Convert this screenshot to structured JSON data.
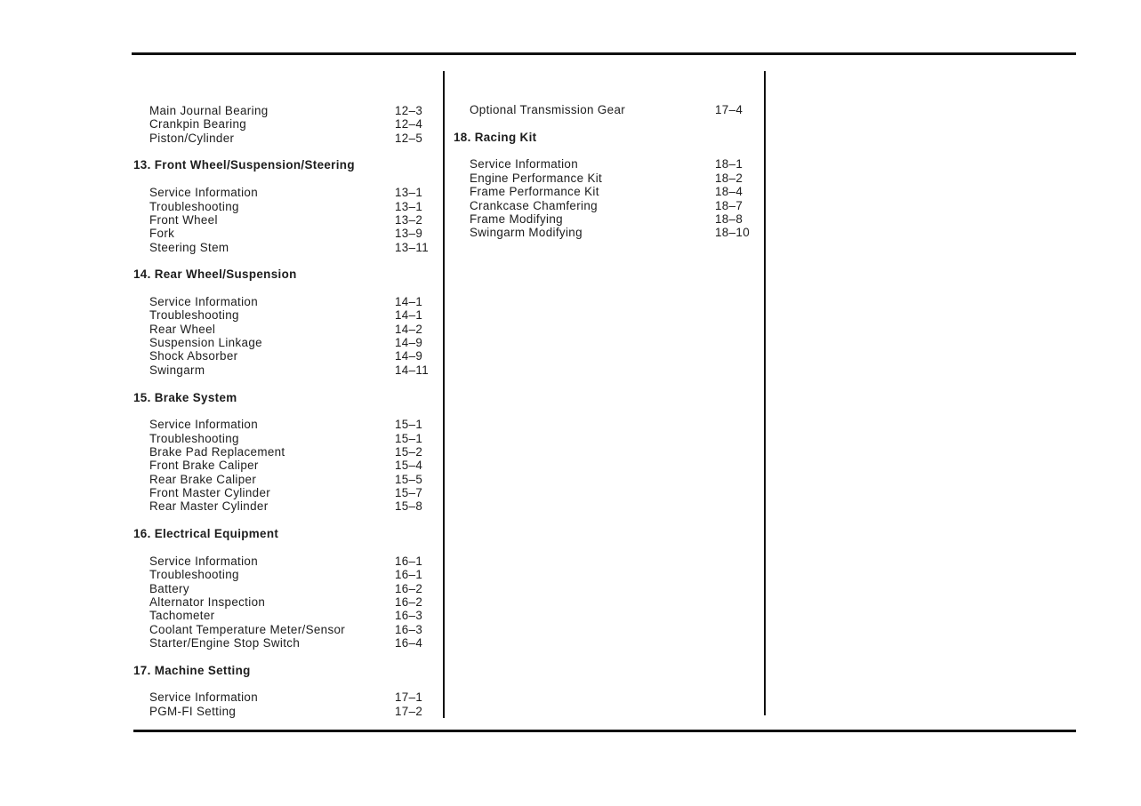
{
  "left_column": {
    "leading_items": [
      {
        "title": "Main Journal Bearing",
        "page": "12–3"
      },
      {
        "title": "Crankpin Bearing",
        "page": "12–4"
      },
      {
        "title": "Piston/Cylinder",
        "page": "12–5"
      }
    ],
    "sections": [
      {
        "heading": "13. Front Wheel/Suspension/Steering",
        "items": [
          {
            "title": "Service Information",
            "page": "13–1"
          },
          {
            "title": "Troubleshooting",
            "page": "13–1"
          },
          {
            "title": "Front Wheel",
            "page": "13–2"
          },
          {
            "title": "Fork",
            "page": "13–9"
          },
          {
            "title": "Steering Stem",
            "page": "13–11"
          }
        ]
      },
      {
        "heading": "14. Rear Wheel/Suspension",
        "items": [
          {
            "title": "Service Information",
            "page": "14–1"
          },
          {
            "title": "Troubleshooting",
            "page": "14–1"
          },
          {
            "title": "Rear Wheel",
            "page": "14–2"
          },
          {
            "title": "Suspension Linkage",
            "page": "14–9"
          },
          {
            "title": "Shock Absorber",
            "page": "14–9"
          },
          {
            "title": "Swingarm",
            "page": "14–11"
          }
        ]
      },
      {
        "heading": "15. Brake System",
        "items": [
          {
            "title": "Service Information",
            "page": "15–1"
          },
          {
            "title": "Troubleshooting",
            "page": "15–1"
          },
          {
            "title": "Brake Pad Replacement",
            "page": "15–2"
          },
          {
            "title": "Front Brake Caliper",
            "page": "15–4"
          },
          {
            "title": "Rear Brake Caliper",
            "page": "15–5"
          },
          {
            "title": "Front Master Cylinder",
            "page": "15–7"
          },
          {
            "title": "Rear Master Cylinder",
            "page": "15–8"
          }
        ]
      },
      {
        "heading": "16. Electrical Equipment",
        "items": [
          {
            "title": "Service Information",
            "page": "16–1"
          },
          {
            "title": "Troubleshooting",
            "page": "16–1"
          },
          {
            "title": "Battery",
            "page": "16–2"
          },
          {
            "title": "Alternator Inspection",
            "page": "16–2"
          },
          {
            "title": "Tachometer",
            "page": "16–3"
          },
          {
            "title": "Coolant Temperature Meter/Sensor",
            "page": "16–3"
          },
          {
            "title": "Starter/Engine Stop Switch",
            "page": "16–4"
          }
        ]
      },
      {
        "heading": "17. Machine Setting",
        "items": [
          {
            "title": "Service Information",
            "page": "17–1"
          },
          {
            "title": "PGM-FI Setting",
            "page": "17–2"
          }
        ]
      }
    ]
  },
  "right_column": {
    "leading_items": [
      {
        "title": "Optional Transmission Gear",
        "page": "17–4"
      }
    ],
    "sections": [
      {
        "heading": "18. Racing Kit",
        "items": [
          {
            "title": "Service Information",
            "page": "18–1"
          },
          {
            "title": "Engine Performance Kit",
            "page": "18–2"
          },
          {
            "title": "Frame Performance Kit",
            "page": "18–4"
          },
          {
            "title": "Crankcase Chamfering",
            "page": "18–7"
          },
          {
            "title": "Frame Modifying",
            "page": "18–8"
          },
          {
            "title": "Swingarm Modifying",
            "page": "18–10"
          }
        ]
      }
    ]
  }
}
